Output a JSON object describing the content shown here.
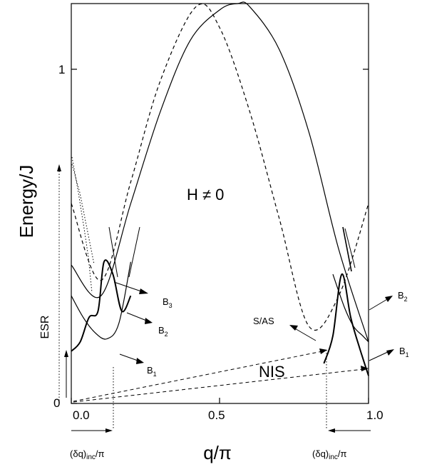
{
  "chart_data": {
    "type": "line",
    "title": "",
    "xlabel": "q/π",
    "ylabel": "Energy/J",
    "xlim": [
      0,
      1
    ],
    "ylim": [
      0,
      1.3
    ],
    "x_ticks": [
      "0.0",
      "0.5",
      "1.0"
    ],
    "y_ticks": [
      "0",
      "1"
    ],
    "annotations": {
      "field": "H ≠ 0",
      "esr": "ESR",
      "nis": "NIS",
      "s_as": "S/AS",
      "dq_left": "(δq)inc/π",
      "dq_right": "(δq)inc/π",
      "b3": "B3",
      "b2_left": "B2",
      "b1_left": "B1",
      "b2_right": "B2",
      "b1_right": "B1"
    },
    "series": [
      {
        "name": "",
        "style": "solid",
        "x": [
          0,
          0.1,
          0.2,
          0.3,
          0.4,
          0.5,
          0.56,
          0.6,
          0.7,
          0.8,
          0.9,
          1.0
        ],
        "y": [
          0.45,
          0.35,
          0.65,
          0.95,
          1.18,
          1.28,
          1.3,
          1.29,
          1.15,
          0.88,
          0.5,
          0.2
        ]
      },
      {
        "name": "",
        "style": "dashed",
        "x": [
          0,
          0.1,
          0.2,
          0.3,
          0.42,
          0.5,
          0.6,
          0.7,
          0.8,
          0.9,
          1.0
        ],
        "y": [
          0.65,
          0.4,
          0.72,
          1.05,
          1.29,
          1.22,
          0.95,
          0.6,
          0.25,
          0.35,
          0.65
        ]
      },
      {
        "name": "",
        "style": "solid",
        "x": [
          0,
          0.04,
          0.08,
          0.12,
          0.16,
          0.2
        ],
        "y": [
          0.35,
          0.28,
          0.23,
          0.21,
          0.26,
          0.46
        ]
      },
      {
        "name": "",
        "style": "solid",
        "x": [
          0.88,
          0.92,
          0.95,
          0.98,
          1.0
        ],
        "y": [
          0.42,
          0.31,
          0.25,
          0.22,
          0.2
        ]
      },
      {
        "name": "",
        "style": "thick",
        "x": [
          0,
          0.03,
          0.06,
          0.09,
          0.11,
          0.14,
          0.17,
          0.2
        ],
        "y": [
          0.17,
          0.2,
          0.28,
          0.3,
          0.46,
          0.42,
          0.3,
          0.35
        ]
      },
      {
        "name": "",
        "style": "thick",
        "x": [
          0.85,
          0.88,
          0.91,
          0.94,
          0.97,
          1.0
        ],
        "y": [
          0.13,
          0.22,
          0.42,
          0.28,
          0.18,
          0.09
        ]
      }
    ]
  }
}
